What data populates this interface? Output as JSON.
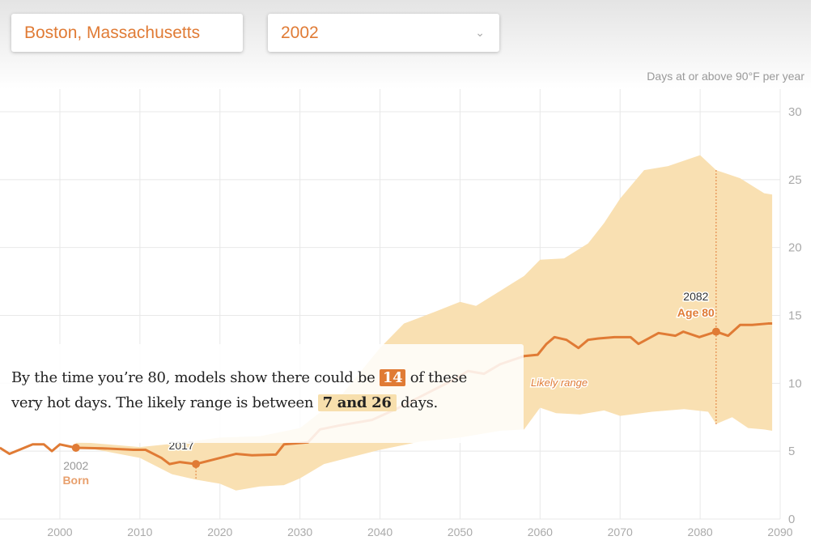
{
  "controls": {
    "city": "Boston, Massachusetts",
    "year": "2002"
  },
  "callout": {
    "p1": "By the time you’re 80, models show there could be",
    "value": "14",
    "p2": "of these very hot days. The likely range is between",
    "range": "7 and 26",
    "p3": "days."
  },
  "annotations": {
    "born_year": "2002",
    "born_label": "Born",
    "now_year": "2017",
    "age_year": "2082",
    "age_label": "Age 80",
    "range_label": "Likely range"
  },
  "colors": {
    "line": "#e07b35",
    "band": "#f9e0b2"
  },
  "chart_data": {
    "type": "area",
    "ylabel": "Days at or above 90°F per year",
    "xlim": [
      1992.5,
      2090
    ],
    "ylim": [
      0,
      30
    ],
    "xticks": [
      2000,
      2010,
      2020,
      2030,
      2040,
      2050,
      2060,
      2070,
      2080,
      2090
    ],
    "yticks": [
      0,
      5,
      10,
      15,
      20,
      25,
      30
    ],
    "median": {
      "x": [
        1992.5,
        1993.7,
        1996.6,
        1998,
        1999,
        2000,
        2002,
        2005.7,
        2009.2,
        2010.7,
        2012.7,
        2013.7,
        2015,
        2017,
        2019,
        2022,
        2024,
        2027,
        2028,
        2031,
        2032.5,
        2035,
        2039,
        2042,
        2045,
        2049,
        2051,
        2053,
        2055,
        2058,
        2059.7,
        2060.8,
        2061.8,
        2063.3,
        2064.8,
        2066,
        2067.3,
        2069.3,
        2071.3,
        2072.3,
        2074.8,
        2076.9,
        2077.9,
        2079.9,
        2082,
        2083.5,
        2085,
        2086.5,
        2088.5,
        2089
      ],
      "y": [
        5.25,
        4.8,
        5.5,
        5.5,
        5.0,
        5.5,
        5.25,
        5.2,
        5.1,
        5.1,
        4.5,
        4.05,
        4.2,
        4.05,
        4.35,
        4.8,
        4.7,
        4.75,
        5.5,
        5.65,
        6.6,
        6.9,
        7.3,
        8.1,
        9.0,
        10.2,
        10.9,
        10.7,
        11.4,
        12.0,
        12.1,
        12.9,
        13.4,
        13.2,
        12.6,
        13.2,
        13.3,
        13.4,
        13.4,
        12.9,
        13.7,
        13.5,
        13.8,
        13.4,
        13.8,
        13.5,
        14.3,
        14.3,
        14.4,
        14.4
      ]
    },
    "upper": {
      "x": [
        2002,
        2010,
        2015,
        2020,
        2025,
        2030,
        2035,
        2040,
        2043,
        2047,
        2050,
        2052,
        2055,
        2058,
        2060,
        2063,
        2066,
        2068,
        2070,
        2073,
        2076,
        2079,
        2080,
        2082,
        2085,
        2088,
        2089
      ],
      "y": [
        5.7,
        5.3,
        5.6,
        6.0,
        6.1,
        6.7,
        9.0,
        12.6,
        14.4,
        15.3,
        16.0,
        15.7,
        16.8,
        17.9,
        19.1,
        19.2,
        20.3,
        21.8,
        23.6,
        25.7,
        26.0,
        26.6,
        26.8,
        25.7,
        25.1,
        24.0,
        23.9
      ]
    },
    "lower": {
      "x": [
        2002,
        2010,
        2014,
        2017,
        2020,
        2022,
        2025,
        2028,
        2030,
        2033,
        2036,
        2040,
        2045,
        2050,
        2055,
        2058,
        2060,
        2062,
        2065,
        2068,
        2070,
        2074,
        2078,
        2081,
        2082,
        2084,
        2086,
        2088,
        2089
      ],
      "y": [
        5.4,
        4.5,
        3.3,
        2.9,
        2.6,
        2.1,
        2.4,
        2.5,
        3.0,
        4.05,
        4.5,
        5.1,
        5.7,
        6.0,
        6.5,
        6.6,
        8.2,
        7.8,
        7.7,
        8.0,
        7.6,
        7.9,
        8.1,
        7.9,
        7.0,
        7.5,
        6.7,
        6.6,
        6.5
      ]
    },
    "markers": [
      {
        "x": 2002,
        "y": 5.25
      },
      {
        "x": 2017,
        "y": 4.05
      },
      {
        "x": 2082,
        "y": 13.8
      }
    ]
  }
}
